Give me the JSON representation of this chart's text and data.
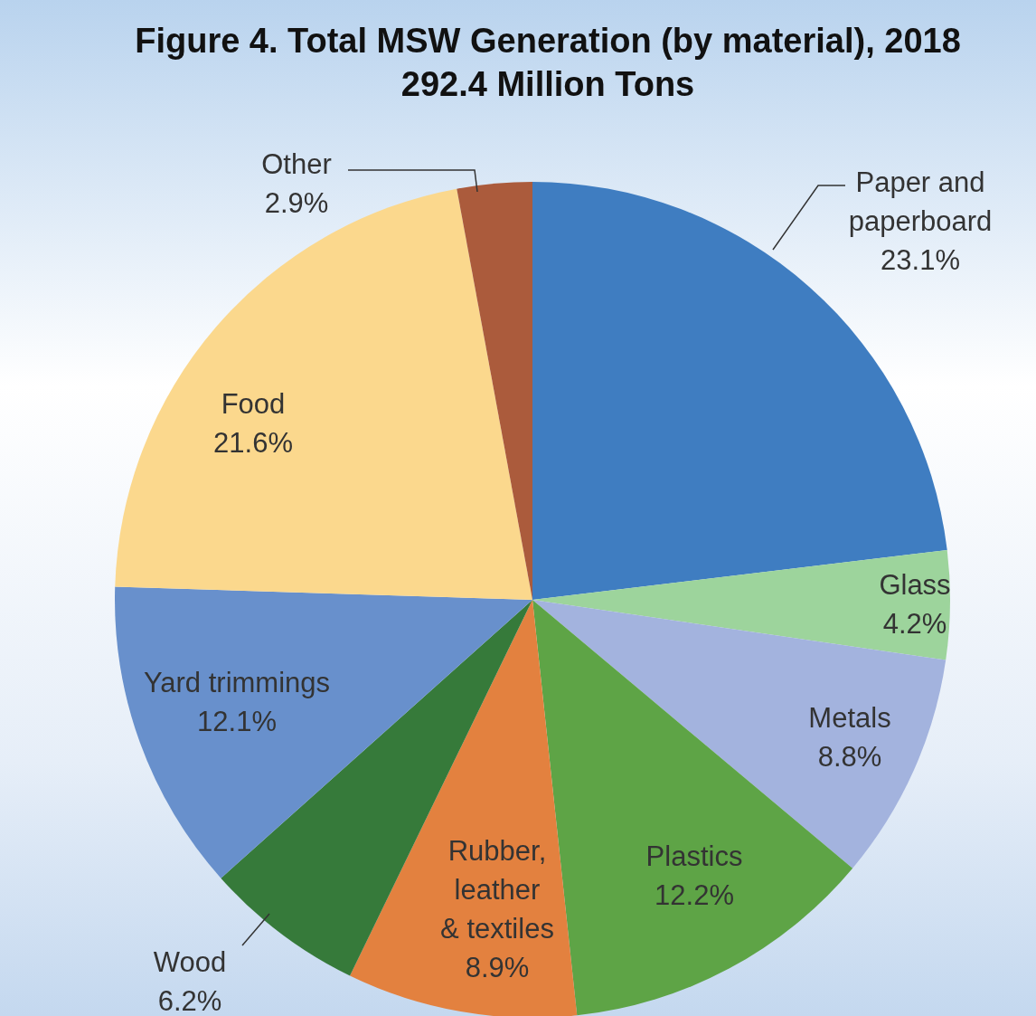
{
  "chart_data": {
    "type": "pie",
    "title": "Figure 4. Total MSW Generation (by material), 2018",
    "subtitle": "292.4 Million Tons",
    "categories": [
      "Paper and paperboard",
      "Glass",
      "Metals",
      "Plastics",
      "Rubber, leather & textiles",
      "Wood",
      "Yard trimmings",
      "Food",
      "Other"
    ],
    "values": [
      23.1,
      4.2,
      8.8,
      12.2,
      8.9,
      6.2,
      12.1,
      21.6,
      2.9
    ],
    "value_labels": [
      "23.1%",
      "4.2%",
      "8.8%",
      "12.2%",
      "8.9%",
      "6.2%",
      "12.1%",
      "21.6%",
      "2.9%"
    ],
    "colors": [
      "#3f7dc1",
      "#9dd49c",
      "#a3b3de",
      "#5ea446",
      "#e3813f",
      "#367a3a",
      "#6890cc",
      "#fbd88d",
      "#ab5b3c"
    ]
  }
}
